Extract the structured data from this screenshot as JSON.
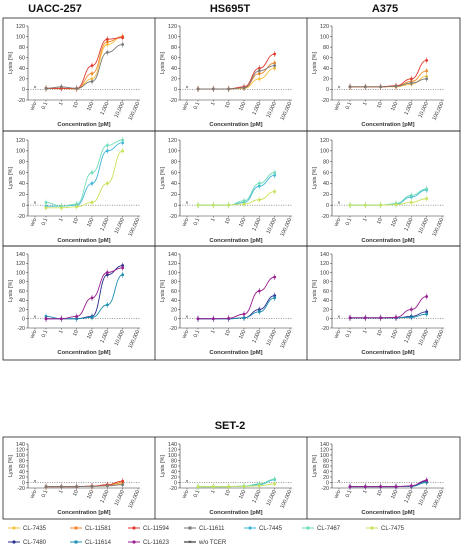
{
  "columns": [
    "UACC-257",
    "HS695T",
    "A375"
  ],
  "set2_title": "SET-2",
  "axis": {
    "xlabel": "Concentration [pM]",
    "ylabel": "Lysis [%]",
    "x_ticks": [
      "w/o",
      "0.1",
      "1",
      "10",
      "100",
      "1,000",
      "10,000",
      "100,000"
    ],
    "y_ticks": [
      -20,
      0,
      20,
      40,
      60,
      80,
      100,
      120,
      140
    ],
    "wo_marker": "×"
  },
  "legend": [
    {
      "name": "CL-7435",
      "color": "#f5c242",
      "marker": "circle"
    },
    {
      "name": "CL-11581",
      "color": "#f08a2c",
      "marker": "square"
    },
    {
      "name": "CL-11594",
      "color": "#e03a2f",
      "marker": "circle"
    },
    {
      "name": "CL-11611",
      "color": "#7a7a7a",
      "marker": "square"
    },
    {
      "name": "CL-7445",
      "color": "#3fb6d9",
      "marker": "circle"
    },
    {
      "name": "CL-7467",
      "color": "#6fdcb7",
      "marker": "square"
    },
    {
      "name": "CL-7475",
      "color": "#c8e35a",
      "marker": "circle"
    },
    {
      "name": "CL-7480",
      "color": "#2b2f8f",
      "marker": "circle"
    },
    {
      "name": "CL-11614",
      "color": "#1d8fb0",
      "marker": "square"
    },
    {
      "name": "CL-11623",
      "color": "#9a1f8f",
      "marker": "circle"
    },
    {
      "name": "w/o TCER",
      "color": "#111111",
      "marker": "x"
    }
  ],
  "chart_data": [
    {
      "type": "line",
      "panel": "UACC-257 group 1",
      "x": [
        0.1,
        1,
        10,
        100,
        1000,
        10000
      ],
      "ylim": [
        -20,
        120
      ],
      "xscale": "log",
      "series": [
        {
          "name": "CL-7435",
          "values": [
            2,
            2,
            1,
            20,
            85,
            100
          ]
        },
        {
          "name": "CL-11581",
          "values": [
            2,
            2,
            1,
            30,
            90,
            100
          ]
        },
        {
          "name": "CL-11594",
          "values": [
            2,
            2,
            2,
            45,
            95,
            98
          ]
        },
        {
          "name": "CL-11611",
          "values": [
            2,
            5,
            2,
            15,
            70,
            85
          ]
        }
      ]
    },
    {
      "type": "line",
      "panel": "HS695T group 1",
      "x": [
        0.1,
        1,
        10,
        100,
        1000,
        10000
      ],
      "ylim": [
        -20,
        120
      ],
      "xscale": "log",
      "series": [
        {
          "name": "CL-7435",
          "values": [
            1,
            1,
            1,
            2,
            20,
            40
          ]
        },
        {
          "name": "CL-11581",
          "values": [
            1,
            1,
            1,
            3,
            30,
            50
          ]
        },
        {
          "name": "CL-11594",
          "values": [
            1,
            1,
            1,
            5,
            40,
            67
          ]
        },
        {
          "name": "CL-11611",
          "values": [
            1,
            1,
            1,
            3,
            35,
            45
          ]
        }
      ]
    },
    {
      "type": "line",
      "panel": "A375 group 1",
      "x": [
        0.1,
        1,
        10,
        100,
        1000,
        10000
      ],
      "ylim": [
        -20,
        120
      ],
      "xscale": "log",
      "series": [
        {
          "name": "CL-7435",
          "values": [
            5,
            5,
            5,
            5,
            10,
            25
          ]
        },
        {
          "name": "CL-11581",
          "values": [
            5,
            5,
            5,
            6,
            15,
            35
          ]
        },
        {
          "name": "CL-11594",
          "values": [
            5,
            5,
            5,
            7,
            20,
            55
          ]
        },
        {
          "name": "CL-11611",
          "values": [
            5,
            5,
            5,
            6,
            12,
            20
          ]
        }
      ]
    },
    {
      "type": "line",
      "panel": "UACC-257 group 2",
      "x": [
        0.1,
        1,
        10,
        100,
        1000,
        10000
      ],
      "ylim": [
        -20,
        120
      ],
      "xscale": "log",
      "series": [
        {
          "name": "CL-7445",
          "values": [
            -2,
            -2,
            0,
            40,
            100,
            115
          ]
        },
        {
          "name": "CL-7467",
          "values": [
            5,
            -2,
            2,
            60,
            110,
            120
          ]
        },
        {
          "name": "CL-7475",
          "values": [
            -5,
            -5,
            -3,
            5,
            40,
            100
          ]
        }
      ]
    },
    {
      "type": "line",
      "panel": "HS695T group 2",
      "x": [
        0.1,
        1,
        10,
        100,
        1000,
        10000
      ],
      "ylim": [
        -20,
        120
      ],
      "xscale": "log",
      "series": [
        {
          "name": "CL-7445",
          "values": [
            0,
            0,
            0,
            5,
            35,
            55
          ]
        },
        {
          "name": "CL-7467",
          "values": [
            0,
            0,
            0,
            8,
            40,
            60
          ]
        },
        {
          "name": "CL-7475",
          "values": [
            0,
            0,
            0,
            2,
            10,
            25
          ]
        }
      ]
    },
    {
      "type": "line",
      "panel": "A375 group 2",
      "x": [
        0.1,
        1,
        10,
        100,
        1000,
        10000
      ],
      "ylim": [
        -20,
        120
      ],
      "xscale": "log",
      "series": [
        {
          "name": "CL-7445",
          "values": [
            0,
            0,
            0,
            2,
            15,
            28
          ]
        },
        {
          "name": "CL-7467",
          "values": [
            0,
            0,
            0,
            3,
            18,
            30
          ]
        },
        {
          "name": "CL-7475",
          "values": [
            0,
            0,
            0,
            1,
            5,
            12
          ]
        }
      ]
    },
    {
      "type": "line",
      "panel": "UACC-257 group 3",
      "x": [
        0.1,
        1,
        10,
        100,
        1000,
        10000
      ],
      "ylim": [
        -20,
        140
      ],
      "xscale": "log",
      "series": [
        {
          "name": "CL-7480",
          "values": [
            0,
            0,
            0,
            5,
            95,
            115
          ]
        },
        {
          "name": "CL-11614",
          "values": [
            5,
            0,
            0,
            3,
            30,
            95
          ]
        },
        {
          "name": "CL-11623",
          "values": [
            0,
            0,
            5,
            45,
            100,
            110
          ]
        }
      ]
    },
    {
      "type": "line",
      "panel": "HS695T group 3",
      "x": [
        0.1,
        1,
        10,
        100,
        1000,
        10000
      ],
      "ylim": [
        -20,
        140
      ],
      "xscale": "log",
      "series": [
        {
          "name": "CL-7480",
          "values": [
            0,
            0,
            0,
            2,
            20,
            50
          ]
        },
        {
          "name": "CL-11614",
          "values": [
            0,
            0,
            0,
            2,
            15,
            45
          ]
        },
        {
          "name": "CL-11623",
          "values": [
            0,
            0,
            1,
            10,
            60,
            90
          ]
        }
      ]
    },
    {
      "type": "line",
      "panel": "A375 group 3",
      "x": [
        0.1,
        1,
        10,
        100,
        1000,
        10000
      ],
      "ylim": [
        -20,
        140
      ],
      "xscale": "log",
      "series": [
        {
          "name": "CL-7480",
          "values": [
            2,
            2,
            2,
            2,
            5,
            15
          ]
        },
        {
          "name": "CL-11614",
          "values": [
            2,
            2,
            2,
            2,
            3,
            10
          ]
        },
        {
          "name": "CL-11623",
          "values": [
            2,
            2,
            2,
            3,
            20,
            48
          ]
        }
      ]
    },
    {
      "type": "line",
      "panel": "SET-2 group 1",
      "x": [
        0.1,
        1,
        10,
        100,
        1000,
        10000
      ],
      "ylim": [
        -20,
        140
      ],
      "xscale": "log",
      "series": [
        {
          "name": "CL-7435",
          "values": [
            -15,
            -15,
            -15,
            -14,
            -12,
            -5
          ]
        },
        {
          "name": "CL-11581",
          "values": [
            -15,
            -15,
            -15,
            -14,
            -10,
            0
          ]
        },
        {
          "name": "CL-11594",
          "values": [
            -15,
            -15,
            -15,
            -13,
            -8,
            5
          ]
        },
        {
          "name": "CL-11611",
          "values": [
            -15,
            -15,
            -15,
            -14,
            -12,
            -8
          ]
        }
      ]
    },
    {
      "type": "line",
      "panel": "SET-2 group 2",
      "x": [
        0.1,
        1,
        10,
        100,
        1000,
        10000
      ],
      "ylim": [
        -20,
        140
      ],
      "xscale": "log",
      "series": [
        {
          "name": "CL-7445",
          "values": [
            -15,
            -15,
            -15,
            -14,
            -8,
            10
          ]
        },
        {
          "name": "CL-7467",
          "values": [
            -15,
            -15,
            -15,
            -13,
            -5,
            12
          ]
        },
        {
          "name": "CL-7475",
          "values": [
            -15,
            -15,
            -15,
            -14,
            -12,
            -5
          ]
        }
      ]
    },
    {
      "type": "line",
      "panel": "SET-2 group 3",
      "x": [
        0.1,
        1,
        10,
        100,
        1000,
        10000
      ],
      "ylim": [
        -20,
        140
      ],
      "xscale": "log",
      "series": [
        {
          "name": "CL-7480",
          "values": [
            -15,
            -15,
            -15,
            -15,
            -14,
            5
          ]
        },
        {
          "name": "CL-11614",
          "values": [
            -15,
            -15,
            -15,
            -15,
            -14,
            0
          ]
        },
        {
          "name": "CL-11623",
          "values": [
            -15,
            -15,
            -15,
            -15,
            -12,
            8
          ]
        }
      ]
    }
  ]
}
